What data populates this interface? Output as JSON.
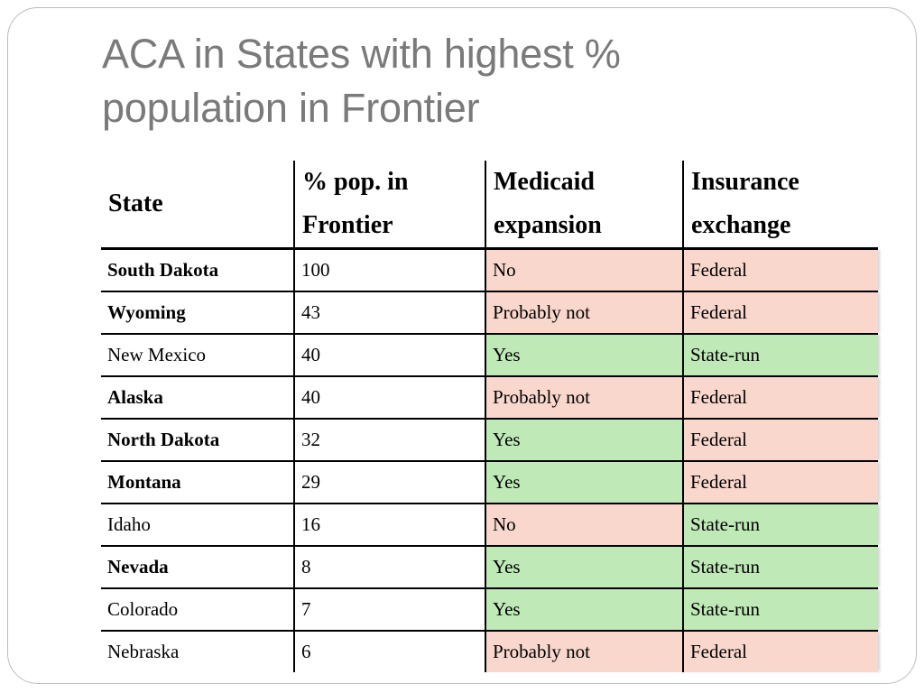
{
  "slide": {
    "title_line1": "ACA in States with highest %",
    "title_line2": "population in Frontier"
  },
  "colors": {
    "no_fill": "#f9d7cd",
    "yes_fill": "#bfe9b7"
  },
  "table": {
    "headers": {
      "state": "State",
      "pop_line1": "% pop. in",
      "pop_line2": "Frontier",
      "medicaid_line1": "Medicaid",
      "medicaid_line2": "expansion",
      "exchange_line1": "Insurance",
      "exchange_line2": "exchange"
    },
    "rows": [
      {
        "state": "South Dakota",
        "bold": true,
        "pct": "100",
        "medicaid": "No",
        "medicaid_color": "red",
        "exchange": "Federal",
        "exchange_color": "red"
      },
      {
        "state": "Wyoming",
        "bold": true,
        "pct": "43",
        "medicaid": "Probably not",
        "medicaid_color": "red",
        "exchange": "Federal",
        "exchange_color": "red"
      },
      {
        "state": "New Mexico",
        "bold": false,
        "pct": "40",
        "medicaid": "Yes",
        "medicaid_color": "green",
        "exchange": "State-run",
        "exchange_color": "green"
      },
      {
        "state": "Alaska",
        "bold": true,
        "pct": "40",
        "medicaid": "Probably not",
        "medicaid_color": "red",
        "exchange": "Federal",
        "exchange_color": "red"
      },
      {
        "state": "North Dakota",
        "bold": true,
        "pct": "32",
        "medicaid": "Yes",
        "medicaid_color": "green",
        "exchange": "Federal",
        "exchange_color": "red"
      },
      {
        "state": "Montana",
        "bold": true,
        "pct": "29",
        "medicaid": "Yes",
        "medicaid_color": "green",
        "exchange": "Federal",
        "exchange_color": "red"
      },
      {
        "state": "Idaho",
        "bold": false,
        "pct": "16",
        "medicaid": "No",
        "medicaid_color": "red",
        "exchange": "State-run",
        "exchange_color": "green"
      },
      {
        "state": "Nevada",
        "bold": true,
        "pct": "8",
        "medicaid": "Yes",
        "medicaid_color": "green",
        "exchange": "State-run",
        "exchange_color": "green"
      },
      {
        "state": "Colorado",
        "bold": false,
        "pct": "7",
        "medicaid": "Yes",
        "medicaid_color": "green",
        "exchange": "State-run",
        "exchange_color": "green"
      },
      {
        "state": "Nebraska",
        "bold": false,
        "pct": "6",
        "medicaid": "Probably not",
        "medicaid_color": "red",
        "exchange": "Federal",
        "exchange_color": "red"
      }
    ]
  }
}
